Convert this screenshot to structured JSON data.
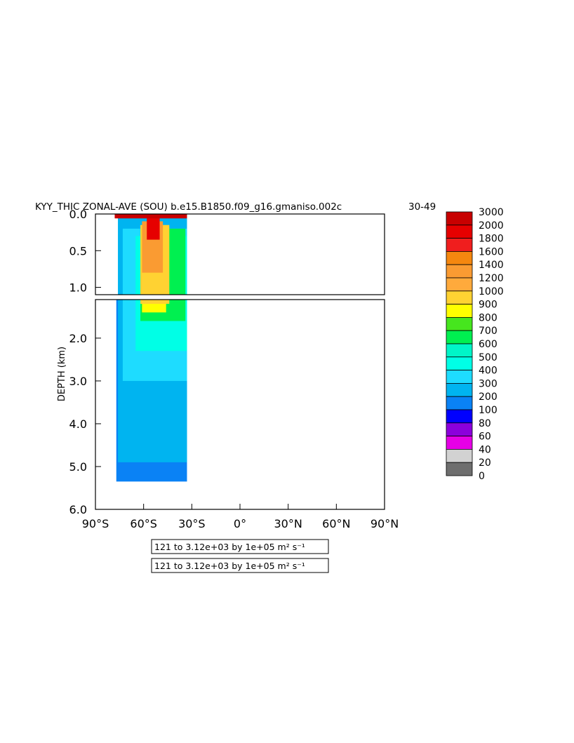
{
  "chart_data": {
    "type": "heatmap",
    "title": "KYY_THIC ZONAL-AVE (SOU) b.e15.B1850.f09_g16.gmaniso.002c",
    "title_years": "30-49",
    "ylabel": "DEPTH (km)",
    "x_ticks": [
      "90°S",
      "60°S",
      "30°S",
      "0°",
      "30°N",
      "60°N",
      "90°N"
    ],
    "y_ticks_upper": [
      "0.0",
      "0.5",
      "1.0"
    ],
    "y_ticks_lower": [
      "2.0",
      "3.0",
      "4.0",
      "5.0",
      "6.0"
    ],
    "xlim": [
      -90,
      90
    ],
    "ylim_upper": [
      0,
      1.1
    ],
    "ylim_lower": [
      1.1,
      6.0
    ],
    "contour_info": [
      "121 to 3.12e+03 by 1e+05 m² s⁻¹",
      "121 to 3.12e+03 by 1e+05 m² s⁻¹"
    ],
    "colorbar": {
      "levels": [
        "3000",
        "2000",
        "1800",
        "1600",
        "1400",
        "1200",
        "1000",
        "900",
        "800",
        "700",
        "600",
        "500",
        "400",
        "300",
        "200",
        "100",
        "80",
        "60",
        "40",
        "20",
        "0"
      ],
      "colors": [
        "#c80000",
        "#e60000",
        "#f01e1e",
        "#f5870f",
        "#fa9b32",
        "#ffaa3c",
        "#ffd232",
        "#ffff00",
        "#46e61e",
        "#00f050",
        "#00f5c8",
        "#00ffe6",
        "#1edcff",
        "#00b4f0",
        "#0a82f5",
        "#0000ff",
        "#8c00dc",
        "#e600e6",
        "#d2d2d2",
        "#6e6e6e"
      ]
    },
    "field": {
      "zones": [
        {
          "level": "200",
          "color": "#0a82f5",
          "lat": [
            -77,
            -33
          ],
          "depth_top": 1.1,
          "depth_bottom": 5.35
        },
        {
          "level": "300",
          "color": "#00b4f0",
          "lat": [
            -76,
            -33
          ],
          "depth_top": 0.0,
          "depth_bottom": 4.9
        },
        {
          "level": "400",
          "color": "#1edcff",
          "lat": [
            -73,
            -33
          ],
          "depth_top": 0.2,
          "depth_bottom": 3.0
        },
        {
          "level": "500",
          "color": "#00ffe6",
          "lat": [
            -65,
            -33
          ],
          "depth_top": 0.3,
          "depth_bottom": 2.3
        },
        {
          "level": "700",
          "color": "#00f050",
          "lat": [
            -62,
            -34
          ],
          "depth_top": 0.2,
          "depth_bottom": 1.6
        },
        {
          "level": "900",
          "color": "#ffff00",
          "lat": [
            -61,
            -46
          ],
          "depth_top": 0.3,
          "depth_bottom": 1.4
        },
        {
          "level": "1000",
          "color": "#ffd232",
          "lat": [
            -62,
            -44
          ],
          "depth_top": 0.15,
          "depth_bottom": 1.2
        },
        {
          "level": "1400",
          "color": "#fa9b32",
          "lat": [
            -61,
            -48
          ],
          "depth_top": 0.1,
          "depth_bottom": 0.8
        },
        {
          "level": "2000",
          "color": "#e60000",
          "lat": [
            -58,
            -50
          ],
          "depth_top": 0.0,
          "depth_bottom": 0.35
        },
        {
          "level": "3000",
          "color": "#c80000",
          "lat": [
            -78,
            -33
          ],
          "depth_top": 0.0,
          "depth_bottom": 0.06
        }
      ]
    }
  }
}
